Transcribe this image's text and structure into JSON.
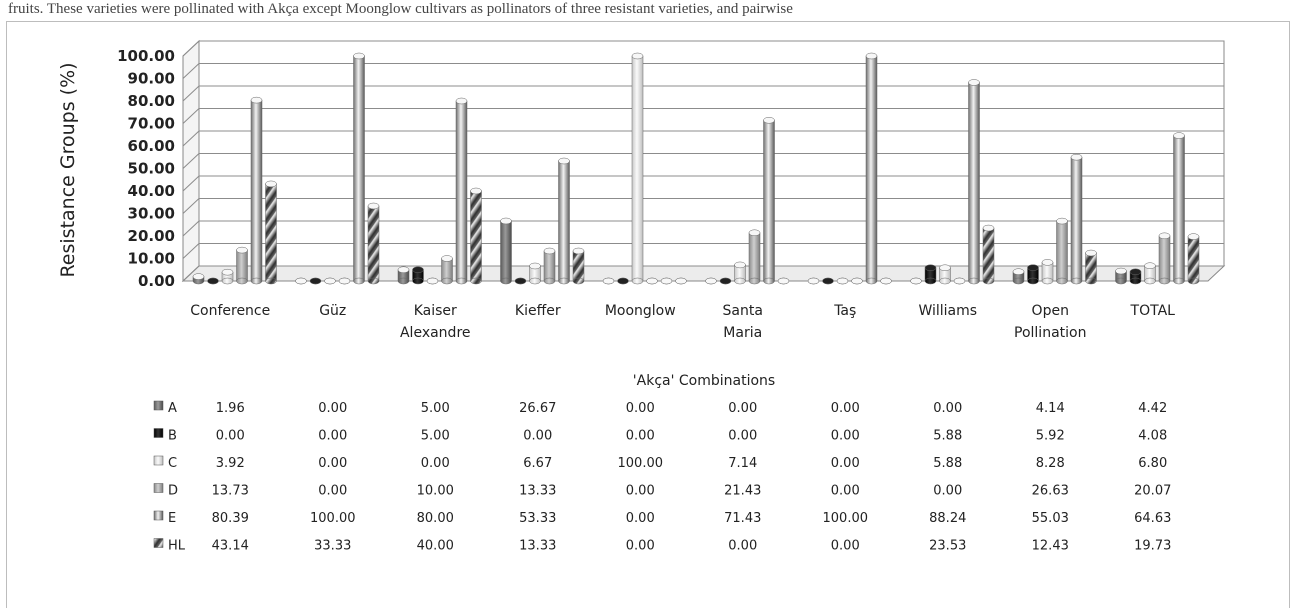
{
  "header_text": "fruits. These varieties were pollinated with Akça except Moonglow cultivars as pollinators of three resistant varieties, and pairwise",
  "chart_data": {
    "type": "bar",
    "ylabel": "Resistance Groups (%)",
    "xlabel": "'Akça' Combinations",
    "ylim": [
      0,
      100
    ],
    "yticks": [
      "0.00",
      "10.00",
      "20.00",
      "30.00",
      "40.00",
      "50.00",
      "60.00",
      "70.00",
      "80.00",
      "90.00",
      "100.00"
    ],
    "categories": [
      [
        "Conference"
      ],
      [
        "Güz"
      ],
      [
        "Kaiser",
        "Alexandre"
      ],
      [
        "Kieffer"
      ],
      [
        "Moonglow"
      ],
      [
        "Santa",
        "Maria"
      ],
      [
        "Taş"
      ],
      [
        "Williams"
      ],
      [
        "Open",
        "Pollination"
      ],
      [
        "TOTAL"
      ]
    ],
    "series": [
      {
        "name": "A",
        "color": "#7a7a7a",
        "values": [
          1.96,
          0.0,
          5.0,
          26.67,
          0.0,
          0.0,
          0.0,
          0.0,
          4.14,
          4.42
        ],
        "labels": [
          "1.96",
          "0.00",
          "5.00",
          "26.67",
          "0.00",
          "0.00",
          "0.00",
          "0.00",
          "4.14",
          "4.42"
        ]
      },
      {
        "name": "B",
        "color": "#0a0a0a",
        "values": [
          0.0,
          0.0,
          5.0,
          0.0,
          0.0,
          0.0,
          0.0,
          5.88,
          5.92,
          4.08
        ],
        "labels": [
          "0.00",
          "0.00",
          "5.00",
          "0.00",
          "0.00",
          "0.00",
          "0.00",
          "5.88",
          "5.92",
          "4.08"
        ]
      },
      {
        "name": "C",
        "color": "#dcdcdc",
        "values": [
          3.92,
          0.0,
          0.0,
          6.67,
          100.0,
          7.14,
          0.0,
          5.88,
          8.28,
          6.8
        ],
        "labels": [
          "3.92",
          "0.00",
          "0.00",
          "6.67",
          "100.00",
          "7.14",
          "0.00",
          "5.88",
          "8.28",
          "6.80"
        ]
      },
      {
        "name": "D",
        "color": "#a8a8a8",
        "values": [
          13.73,
          0.0,
          10.0,
          13.33,
          0.0,
          21.43,
          0.0,
          0.0,
          26.63,
          20.07
        ],
        "labels": [
          "13.73",
          "0.00",
          "10.00",
          "13.33",
          "0.00",
          "21.43",
          "0.00",
          "0.00",
          "26.63",
          "20.07"
        ]
      },
      {
        "name": "E",
        "color": "#b8b8b8",
        "values": [
          80.39,
          100.0,
          80.0,
          53.33,
          0.0,
          71.43,
          100.0,
          88.24,
          55.03,
          64.63
        ],
        "labels": [
          "80.39",
          "100.00",
          "80.00",
          "53.33",
          "0.00",
          "71.43",
          "100.00",
          "88.24",
          "55.03",
          "64.63"
        ]
      },
      {
        "name": "HL",
        "color": "#c4c4c4",
        "values": [
          43.14,
          33.33,
          40.0,
          13.33,
          0.0,
          0.0,
          0.0,
          23.53,
          12.43,
          19.73
        ],
        "labels": [
          "43.14",
          "33.33",
          "40.00",
          "13.33",
          "0.00",
          "0.00",
          "0.00",
          "23.53",
          "12.43",
          "19.73"
        ]
      }
    ],
    "grid": true,
    "legend": "data-table-below"
  }
}
